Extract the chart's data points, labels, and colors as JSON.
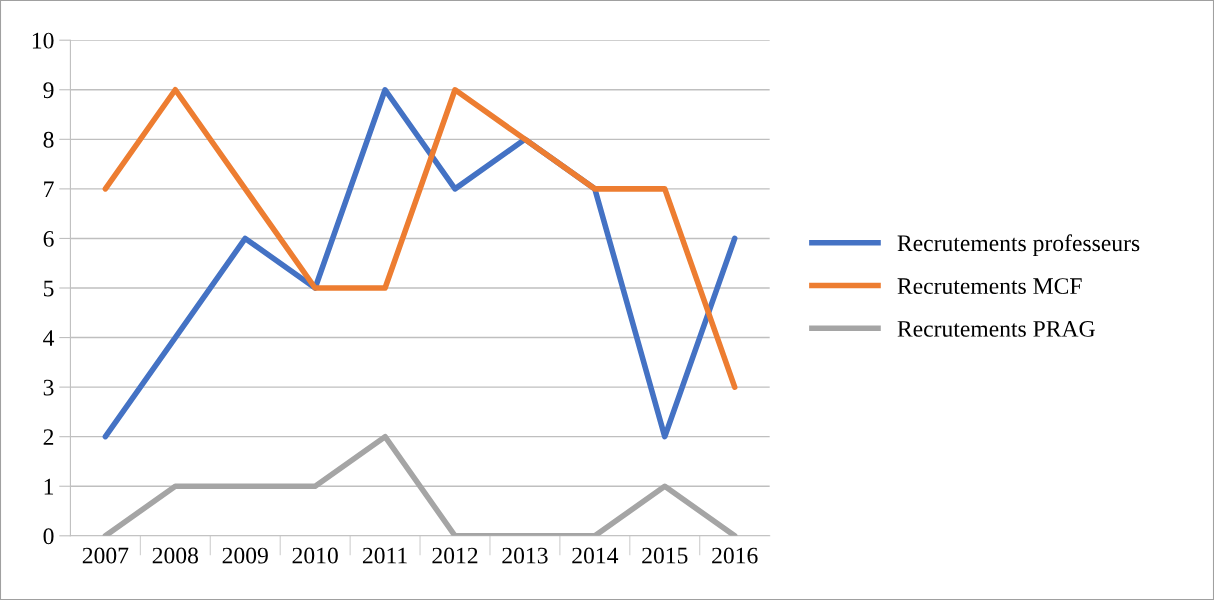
{
  "chart_data": {
    "type": "line",
    "categories": [
      "2007",
      "2008",
      "2009",
      "2010",
      "2011",
      "2012",
      "2013",
      "2014",
      "2015",
      "2016"
    ],
    "series": [
      {
        "name": "Recrutements professeurs",
        "color": "#4472c4",
        "values": [
          2,
          4,
          6,
          5,
          9,
          7,
          8,
          7,
          2,
          6
        ]
      },
      {
        "name": "Recrutements MCF",
        "color": "#ed7d31",
        "values": [
          7,
          9,
          7,
          5,
          5,
          9,
          8,
          7,
          7,
          3
        ]
      },
      {
        "name": "Recrutements PRAG",
        "color": "#a5a5a5",
        "values": [
          0,
          1,
          1,
          1,
          2,
          0,
          0,
          0,
          1,
          0
        ]
      }
    ],
    "ylim": [
      0,
      10
    ],
    "yticks": [
      0,
      1,
      2,
      3,
      4,
      5,
      6,
      7,
      8,
      9,
      10
    ],
    "grid": "y",
    "legend": "right",
    "marker": "none",
    "line_style": "solid"
  }
}
